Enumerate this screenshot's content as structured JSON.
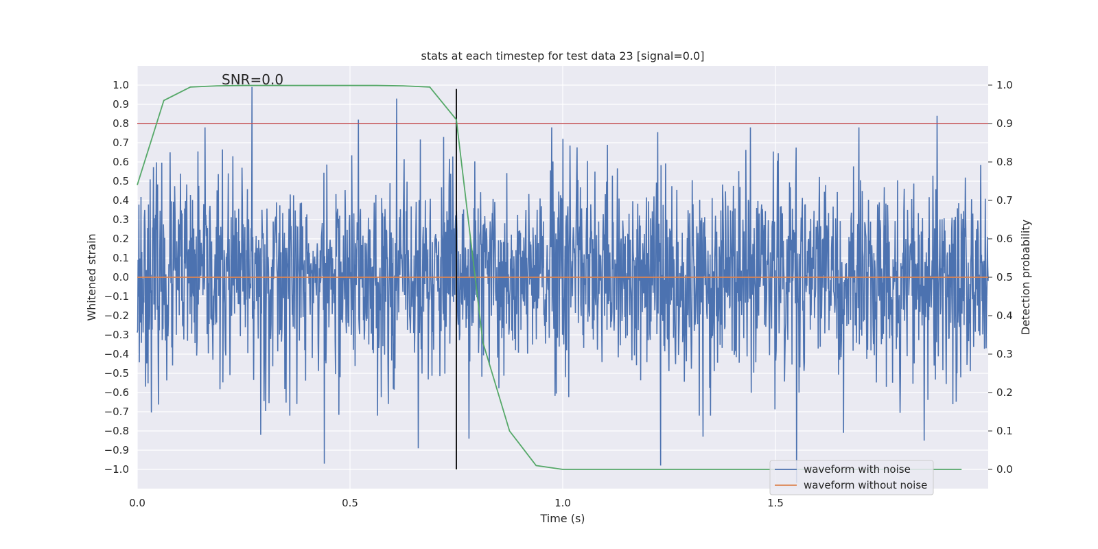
{
  "chart_data": {
    "type": "line",
    "title": "stats at each timestep for test data 23 [signal=0.0]",
    "annotation": "SNR=0.0",
    "xlabel": "Time (s)",
    "ylabel": "Whitened strain",
    "y2label": "Detection probability",
    "xlim": [
      0.0,
      2.0
    ],
    "ylim": [
      -1.1,
      1.1
    ],
    "y2lim": [
      -0.05,
      1.05
    ],
    "xticks": [
      0.0,
      0.5,
      1.0,
      1.5
    ],
    "xtick_labels": [
      "0.0",
      "0.5",
      "1.0",
      "1.5"
    ],
    "yticks": [
      -1.0,
      -0.9,
      -0.8,
      -0.7,
      -0.6,
      -0.5,
      -0.4,
      -0.3,
      -0.2,
      -0.1,
      0.0,
      0.1,
      0.2,
      0.3,
      0.4,
      0.5,
      0.6,
      0.7,
      0.8,
      0.9,
      1.0
    ],
    "ytick_labels": [
      "−1.0",
      "−0.9",
      "−0.8",
      "−0.7",
      "−0.6",
      "−0.5",
      "−0.4",
      "−0.3",
      "−0.2",
      "−0.1",
      "0.0",
      "0.1",
      "0.2",
      "0.3",
      "0.4",
      "0.5",
      "0.6",
      "0.7",
      "0.8",
      "0.9",
      "1.0"
    ],
    "y2ticks": [
      0.0,
      0.1,
      0.2,
      0.3,
      0.4,
      0.5,
      0.6,
      0.7,
      0.8,
      0.9,
      1.0
    ],
    "y2tick_labels": [
      "0.0",
      "0.1",
      "0.2",
      "0.3",
      "0.4",
      "0.5",
      "0.6",
      "0.7",
      "0.8",
      "0.9",
      "1.0"
    ],
    "grid": true,
    "legend": {
      "location": "lower-right",
      "entries": [
        "waveform with noise",
        "waveform without noise"
      ]
    },
    "series": [
      {
        "name": "waveform with noise",
        "color": "#4c72b0",
        "axis": "left",
        "generated": true,
        "x_range": [
          0.0,
          2.0
        ],
        "n_points": 2048,
        "noise_std": 0.26,
        "spikes": [
          {
            "x": 0.27,
            "y": 0.99
          },
          {
            "x": 0.29,
            "y": -0.82
          },
          {
            "x": 0.44,
            "y": -0.97
          },
          {
            "x": 0.52,
            "y": 0.82
          },
          {
            "x": 0.61,
            "y": 0.93
          },
          {
            "x": 0.66,
            "y": -0.89
          },
          {
            "x": 0.78,
            "y": -0.84
          },
          {
            "x": 1.23,
            "y": -0.98
          },
          {
            "x": 1.33,
            "y": -0.83
          },
          {
            "x": 1.55,
            "y": -1.07
          },
          {
            "x": 1.66,
            "y": -0.81
          },
          {
            "x": 1.85,
            "y": -0.85
          },
          {
            "x": 1.88,
            "y": 0.84
          },
          {
            "x": 0.72,
            "y": 0.73
          },
          {
            "x": 1.0,
            "y": 0.72
          }
        ]
      },
      {
        "name": "waveform without noise",
        "color": "#dd8452",
        "axis": "left",
        "x": [
          0.0,
          2.0
        ],
        "y": [
          0.0,
          0.0
        ]
      },
      {
        "name": "detection probability",
        "color": "#55a868",
        "axis": "right",
        "x": [
          0.0,
          0.0625,
          0.125,
          0.1875,
          0.25,
          0.3125,
          0.375,
          0.4375,
          0.5,
          0.5625,
          0.625,
          0.6875,
          0.75,
          0.8125,
          0.875,
          0.9375,
          1.0,
          1.0625,
          1.125,
          1.1875,
          1.25,
          1.3125,
          1.375,
          1.4375,
          1.5,
          1.5625,
          1.625,
          1.6875,
          1.75,
          1.8125,
          1.875,
          1.9375
        ],
        "y": [
          0.74,
          0.96,
          0.995,
          0.998,
          0.999,
          0.999,
          0.999,
          0.999,
          0.999,
          0.999,
          0.998,
          0.995,
          0.91,
          0.33,
          0.1,
          0.01,
          0.0,
          0.0,
          0.0,
          0.0,
          0.0,
          0.0,
          0.0,
          0.0,
          0.0,
          0.0,
          0.0,
          0.0,
          0.0,
          0.0,
          0.0,
          0.0
        ]
      }
    ],
    "reference_lines": [
      {
        "name": "threshold",
        "orientation": "horizontal",
        "axis": "right",
        "value": 0.9,
        "color": "#c44e52"
      },
      {
        "name": "marker",
        "orientation": "vertical",
        "value": 0.75,
        "y2_from": 0.0,
        "y2_to": 0.99,
        "color": "#000000"
      }
    ],
    "colors": {
      "plot_background": "#eaeaf2",
      "grid": "#ffffff",
      "text": "#262626"
    }
  }
}
